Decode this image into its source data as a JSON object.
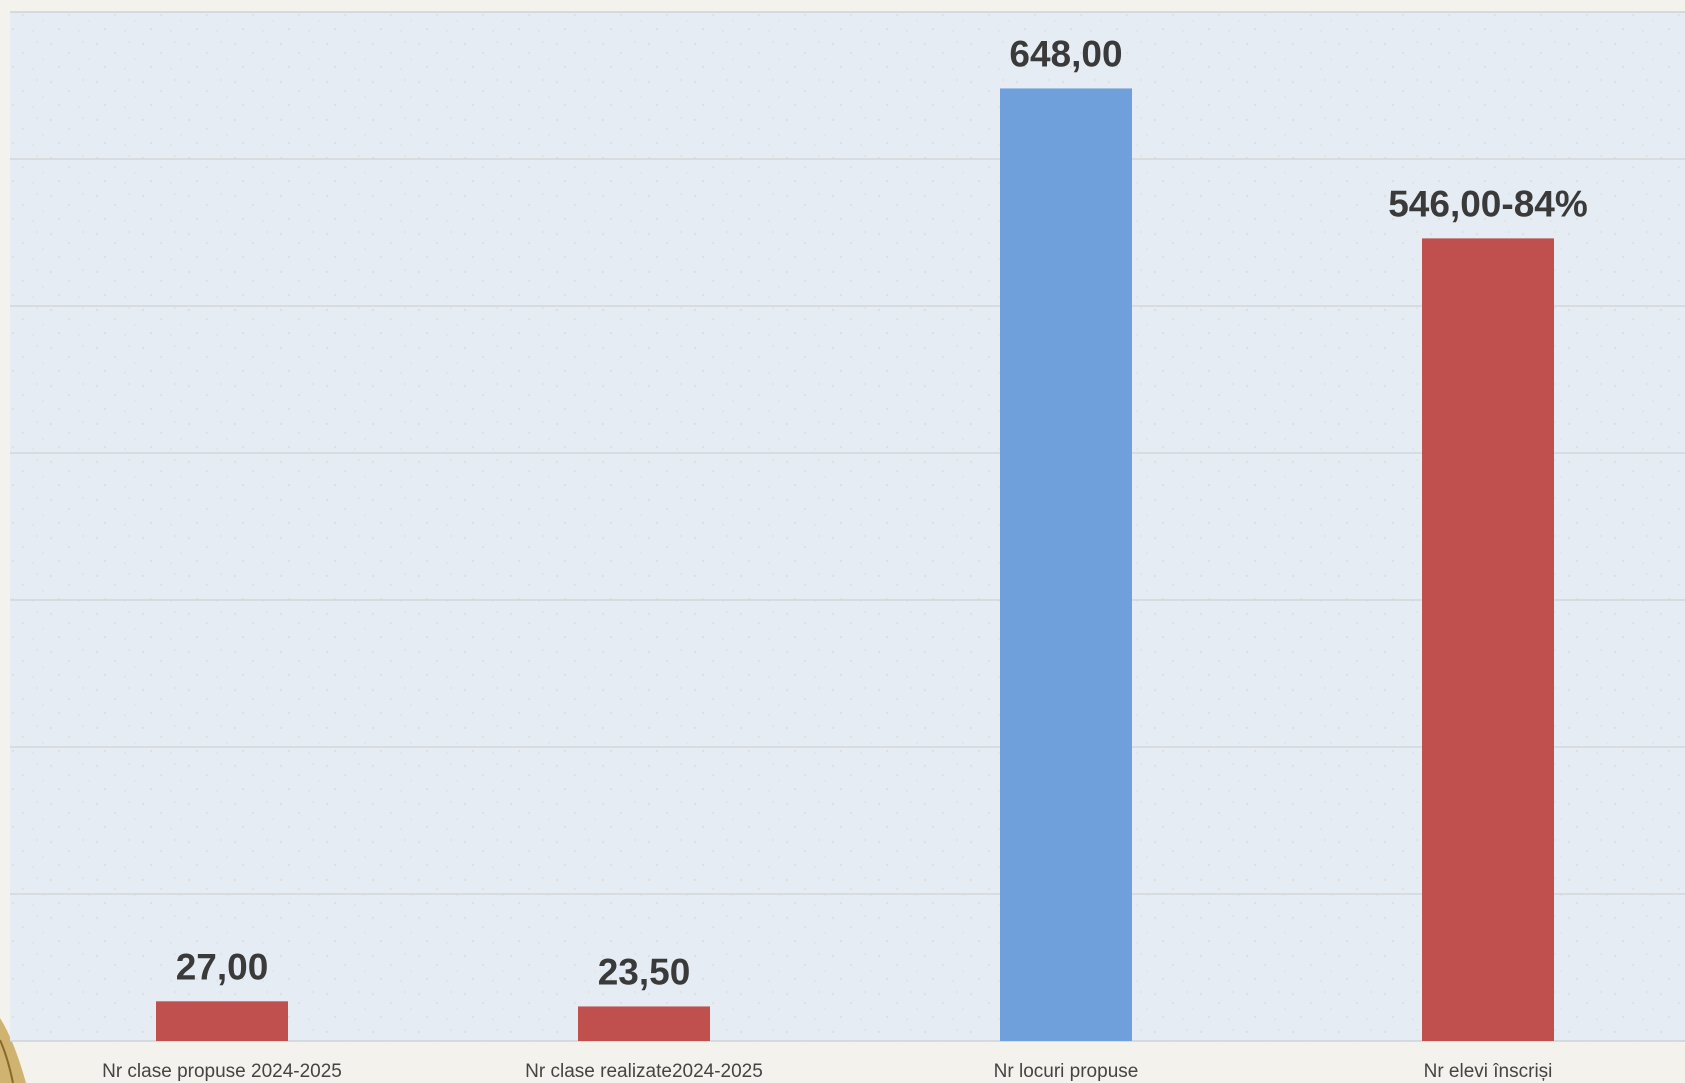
{
  "chart_data": {
    "type": "bar",
    "title": "",
    "xlabel": "",
    "ylabel": "",
    "categories": [
      "Nr clase propuse 2024-2025",
      "Nr clase realizate2024-2025",
      "Nr locuri propuse",
      "Nr elevi înscriși"
    ],
    "values": [
      27,
      23.5,
      648,
      546
    ],
    "data_labels": [
      "27,00",
      "23,50",
      "648,00",
      "546,00-84%"
    ],
    "bar_colors": [
      "#c0504d",
      "#c0504d",
      "#6fa0db",
      "#c0504d"
    ],
    "ylim": [
      0,
      700
    ],
    "grid": true,
    "legend": "none"
  },
  "colors": {
    "plot_background": "#e6ecf4",
    "gridline": "#d3d6da",
    "accent_red": "#c0504d",
    "accent_blue": "#6fa0db"
  }
}
